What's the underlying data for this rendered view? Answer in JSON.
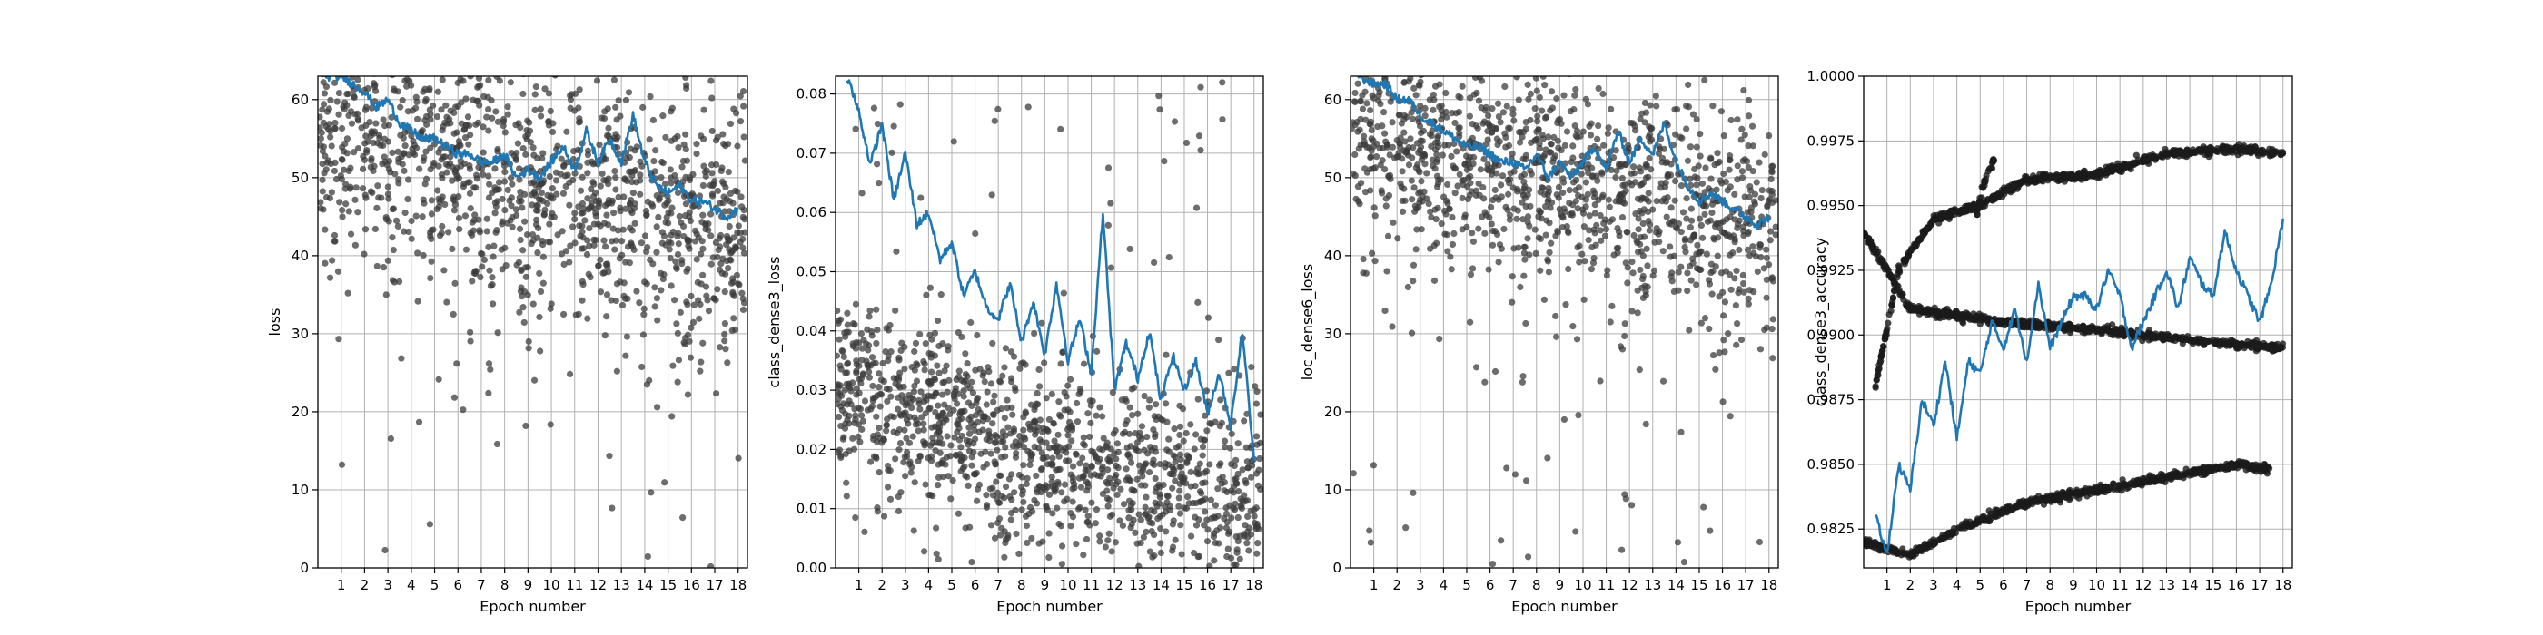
{
  "chart_data": [
    {
      "type": "scatter",
      "xlabel": "Epoch number",
      "ylabel": "loss",
      "xlim": [
        0,
        18.4
      ],
      "ylim": [
        0,
        63
      ],
      "xticks": [
        1,
        2,
        3,
        4,
        5,
        6,
        7,
        8,
        9,
        10,
        11,
        12,
        13,
        14,
        15,
        16,
        17,
        18
      ],
      "yticks": [
        0,
        10,
        20,
        30,
        40,
        50,
        60
      ],
      "grid": true,
      "series": [
        {
          "kind": "points",
          "color": "#3c3c3c",
          "description_points": "per-batch values, densest between 40 and 60",
          "trend": [
            [
              0,
              56
            ],
            [
              2,
              54.5
            ],
            [
              4,
              52
            ],
            [
              6,
              50.5
            ],
            [
              8,
              49
            ],
            [
              10,
              48
            ],
            [
              12,
              47
            ],
            [
              14,
              45
            ],
            [
              16,
              43
            ],
            [
              18,
              42
            ]
          ],
          "spread": 8
        },
        {
          "kind": "line",
          "color": "#1f77b4",
          "x": [
            0.3,
            1,
            1.5,
            2,
            2.5,
            3,
            3.5,
            4,
            4.5,
            5,
            5.5,
            6,
            6.5,
            7,
            7.5,
            8,
            8.5,
            9,
            9.5,
            10,
            10.5,
            11,
            11.5,
            12,
            12.5,
            13,
            13.5,
            14,
            14.5,
            15,
            15.5,
            16,
            16.5,
            17,
            17.5,
            18
          ],
          "y": [
            63,
            63,
            62,
            61,
            59,
            60,
            57,
            56,
            55,
            55,
            54,
            53,
            53,
            52,
            52,
            53,
            50,
            51,
            50,
            52,
            54,
            51,
            56,
            52,
            55,
            52,
            58,
            52,
            49,
            48,
            49,
            47,
            47,
            46,
            45,
            46
          ]
        }
      ]
    },
    {
      "type": "scatter",
      "xlabel": "Epoch number",
      "ylabel": "class_dense3_loss",
      "xlim": [
        0,
        18.4
      ],
      "ylim": [
        0,
        0.083
      ],
      "xticks": [
        1,
        2,
        3,
        4,
        5,
        6,
        7,
        8,
        9,
        10,
        11,
        12,
        13,
        14,
        15,
        16,
        17,
        18
      ],
      "yticks": [
        0.0,
        0.01,
        0.02,
        0.03,
        0.04,
        0.05,
        0.06,
        0.07,
        0.08
      ],
      "grid": true,
      "series": [
        {
          "kind": "points",
          "color": "#3c3c3c",
          "trend": [
            [
              0,
              0.03
            ],
            [
              3,
              0.027
            ],
            [
              6,
              0.022
            ],
            [
              9,
              0.018
            ],
            [
              12,
              0.016
            ],
            [
              15,
              0.014
            ],
            [
              18,
              0.012
            ]
          ],
          "spread": 0.008
        },
        {
          "kind": "line",
          "color": "#1f77b4",
          "x": [
            0.5,
            1,
            1.5,
            2,
            2.5,
            3,
            3.5,
            4,
            4.5,
            5,
            5.5,
            6,
            6.5,
            7,
            7.5,
            8,
            8.5,
            9,
            9.5,
            10,
            10.5,
            11,
            11.5,
            12,
            12.5,
            13,
            13.5,
            14,
            14.5,
            15,
            15.5,
            16,
            16.5,
            17,
            17.5,
            18
          ],
          "y": [
            0.083,
            0.077,
            0.068,
            0.075,
            0.062,
            0.07,
            0.058,
            0.06,
            0.052,
            0.055,
            0.046,
            0.05,
            0.044,
            0.042,
            0.048,
            0.038,
            0.045,
            0.036,
            0.048,
            0.035,
            0.042,
            0.033,
            0.06,
            0.03,
            0.038,
            0.032,
            0.04,
            0.028,
            0.036,
            0.03,
            0.035,
            0.026,
            0.033,
            0.024,
            0.04,
            0.018
          ]
        }
      ]
    },
    {
      "type": "scatter",
      "xlabel": "Epoch number",
      "ylabel": "loc_dense6_loss",
      "xlim": [
        0,
        18.4
      ],
      "ylim": [
        0,
        63
      ],
      "xticks": [
        1,
        2,
        3,
        4,
        5,
        6,
        7,
        8,
        9,
        10,
        11,
        12,
        13,
        14,
        15,
        16,
        17,
        18
      ],
      "yticks": [
        0,
        10,
        20,
        30,
        40,
        50,
        60
      ],
      "grid": true,
      "series": [
        {
          "kind": "points",
          "color": "#3c3c3c",
          "trend": [
            [
              0,
              56
            ],
            [
              2,
              55
            ],
            [
              4,
              53
            ],
            [
              6,
              51
            ],
            [
              8,
              49.5
            ],
            [
              10,
              48.5
            ],
            [
              12,
              47.5
            ],
            [
              14,
              46
            ],
            [
              16,
              44
            ],
            [
              18,
              43
            ]
          ],
          "spread": 7
        },
        {
          "kind": "line",
          "color": "#1f77b4",
          "x": [
            0.3,
            1,
            1.5,
            2,
            2.5,
            3,
            3.5,
            4,
            4.5,
            5,
            5.5,
            6,
            6.5,
            7,
            7.5,
            8,
            8.5,
            9,
            9.5,
            10,
            10.5,
            11,
            11.5,
            12,
            12.5,
            13,
            13.5,
            14,
            14.5,
            15,
            15.5,
            16,
            16.5,
            17,
            17.5,
            18
          ],
          "y": [
            63,
            62,
            62,
            60,
            60,
            58,
            57,
            56,
            55,
            54,
            54,
            53,
            52,
            52,
            51,
            53,
            50,
            52,
            50,
            52,
            54,
            51,
            56,
            52,
            55,
            53,
            57,
            52,
            49,
            47,
            48,
            47,
            46,
            45,
            44,
            45
          ]
        }
      ]
    },
    {
      "type": "scatter",
      "xlabel": "Epoch number",
      "ylabel": "class_dense3_accuracy",
      "xlim": [
        0,
        18.4
      ],
      "ylim": [
        0.981,
        1.0
      ],
      "xticks": [
        1,
        2,
        3,
        4,
        5,
        6,
        7,
        8,
        9,
        10,
        11,
        12,
        13,
        14,
        15,
        16,
        17,
        18
      ],
      "yticks": [
        0.9825,
        0.985,
        0.9875,
        0.99,
        0.9925,
        0.995,
        0.9975,
        1.0
      ],
      "ytick_labels": [
        "0.9825",
        "0.9850",
        "0.9875",
        "0.9900",
        "0.9925",
        "0.9950",
        "0.9975",
        "1.0000"
      ],
      "grid": true,
      "series": [
        {
          "kind": "points",
          "color": "#1a1a1a",
          "bands": [
            [
              [
                0,
                0.994
              ],
              [
                1,
                0.9925
              ],
              [
                2,
                0.991
              ],
              [
                6,
                0.9905
              ],
              [
                10,
                0.9902
              ],
              [
                14,
                0.9898
              ],
              [
                18,
                0.9895
              ]
            ],
            [
              [
                0.5,
                0.988
              ],
              [
                1.5,
                0.9925
              ],
              [
                3,
                0.9945
              ],
              [
                5,
                0.995
              ],
              [
                7,
                0.996
              ],
              [
                10,
                0.9962
              ],
              [
                13,
                0.997
              ],
              [
                16,
                0.9972
              ],
              [
                18,
                0.997
              ]
            ],
            [
              [
                0,
                0.982
              ],
              [
                2,
                0.9815
              ],
              [
                4,
                0.9825
              ],
              [
                7,
                0.9835
              ],
              [
                10,
                0.984
              ],
              [
                13,
                0.9845
              ],
              [
                16,
                0.985
              ],
              [
                17.5,
                0.9848
              ]
            ],
            [
              [
                4.8,
                0.9945
              ],
              [
                5.2,
                0.996
              ],
              [
                5.6,
                0.9968
              ]
            ]
          ]
        },
        {
          "kind": "line",
          "color": "#1f77b4",
          "x": [
            0.5,
            1,
            1.5,
            2,
            2.5,
            3,
            3.5,
            4,
            4.5,
            5,
            5.5,
            6,
            6.5,
            7,
            7.5,
            8,
            8.5,
            9,
            9.5,
            10,
            10.5,
            11,
            11.5,
            12,
            12.5,
            13,
            13.5,
            14,
            14.5,
            15,
            15.5,
            16,
            16.5,
            17,
            17.5,
            18
          ],
          "y": [
            0.983,
            0.9815,
            0.985,
            0.984,
            0.9875,
            0.9865,
            0.989,
            0.986,
            0.989,
            0.9885,
            0.9905,
            0.9895,
            0.991,
            0.989,
            0.992,
            0.9895,
            0.9905,
            0.9915,
            0.9915,
            0.991,
            0.9925,
            0.9915,
            0.9895,
            0.9905,
            0.9915,
            0.9925,
            0.991,
            0.993,
            0.992,
            0.9915,
            0.994,
            0.9925,
            0.9915,
            0.9905,
            0.992,
            0.9945
          ]
        }
      ]
    }
  ]
}
